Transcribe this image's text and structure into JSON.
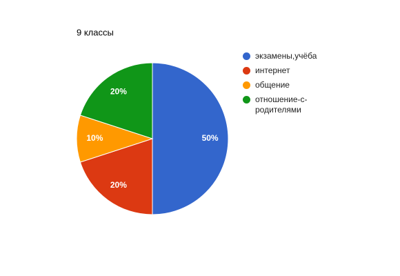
{
  "chart_data": {
    "type": "pie",
    "title": "9 классы",
    "categories": [
      "экзамены,учёба",
      "интернет",
      "общение",
      "отношение-с-родителями"
    ],
    "values": [
      50,
      20,
      10,
      20
    ],
    "value_labels": [
      "50%",
      "20%",
      "10%",
      "20%"
    ],
    "colors": [
      "#3366cc",
      "#dc3912",
      "#ff9900",
      "#109618"
    ],
    "legend": "right"
  }
}
